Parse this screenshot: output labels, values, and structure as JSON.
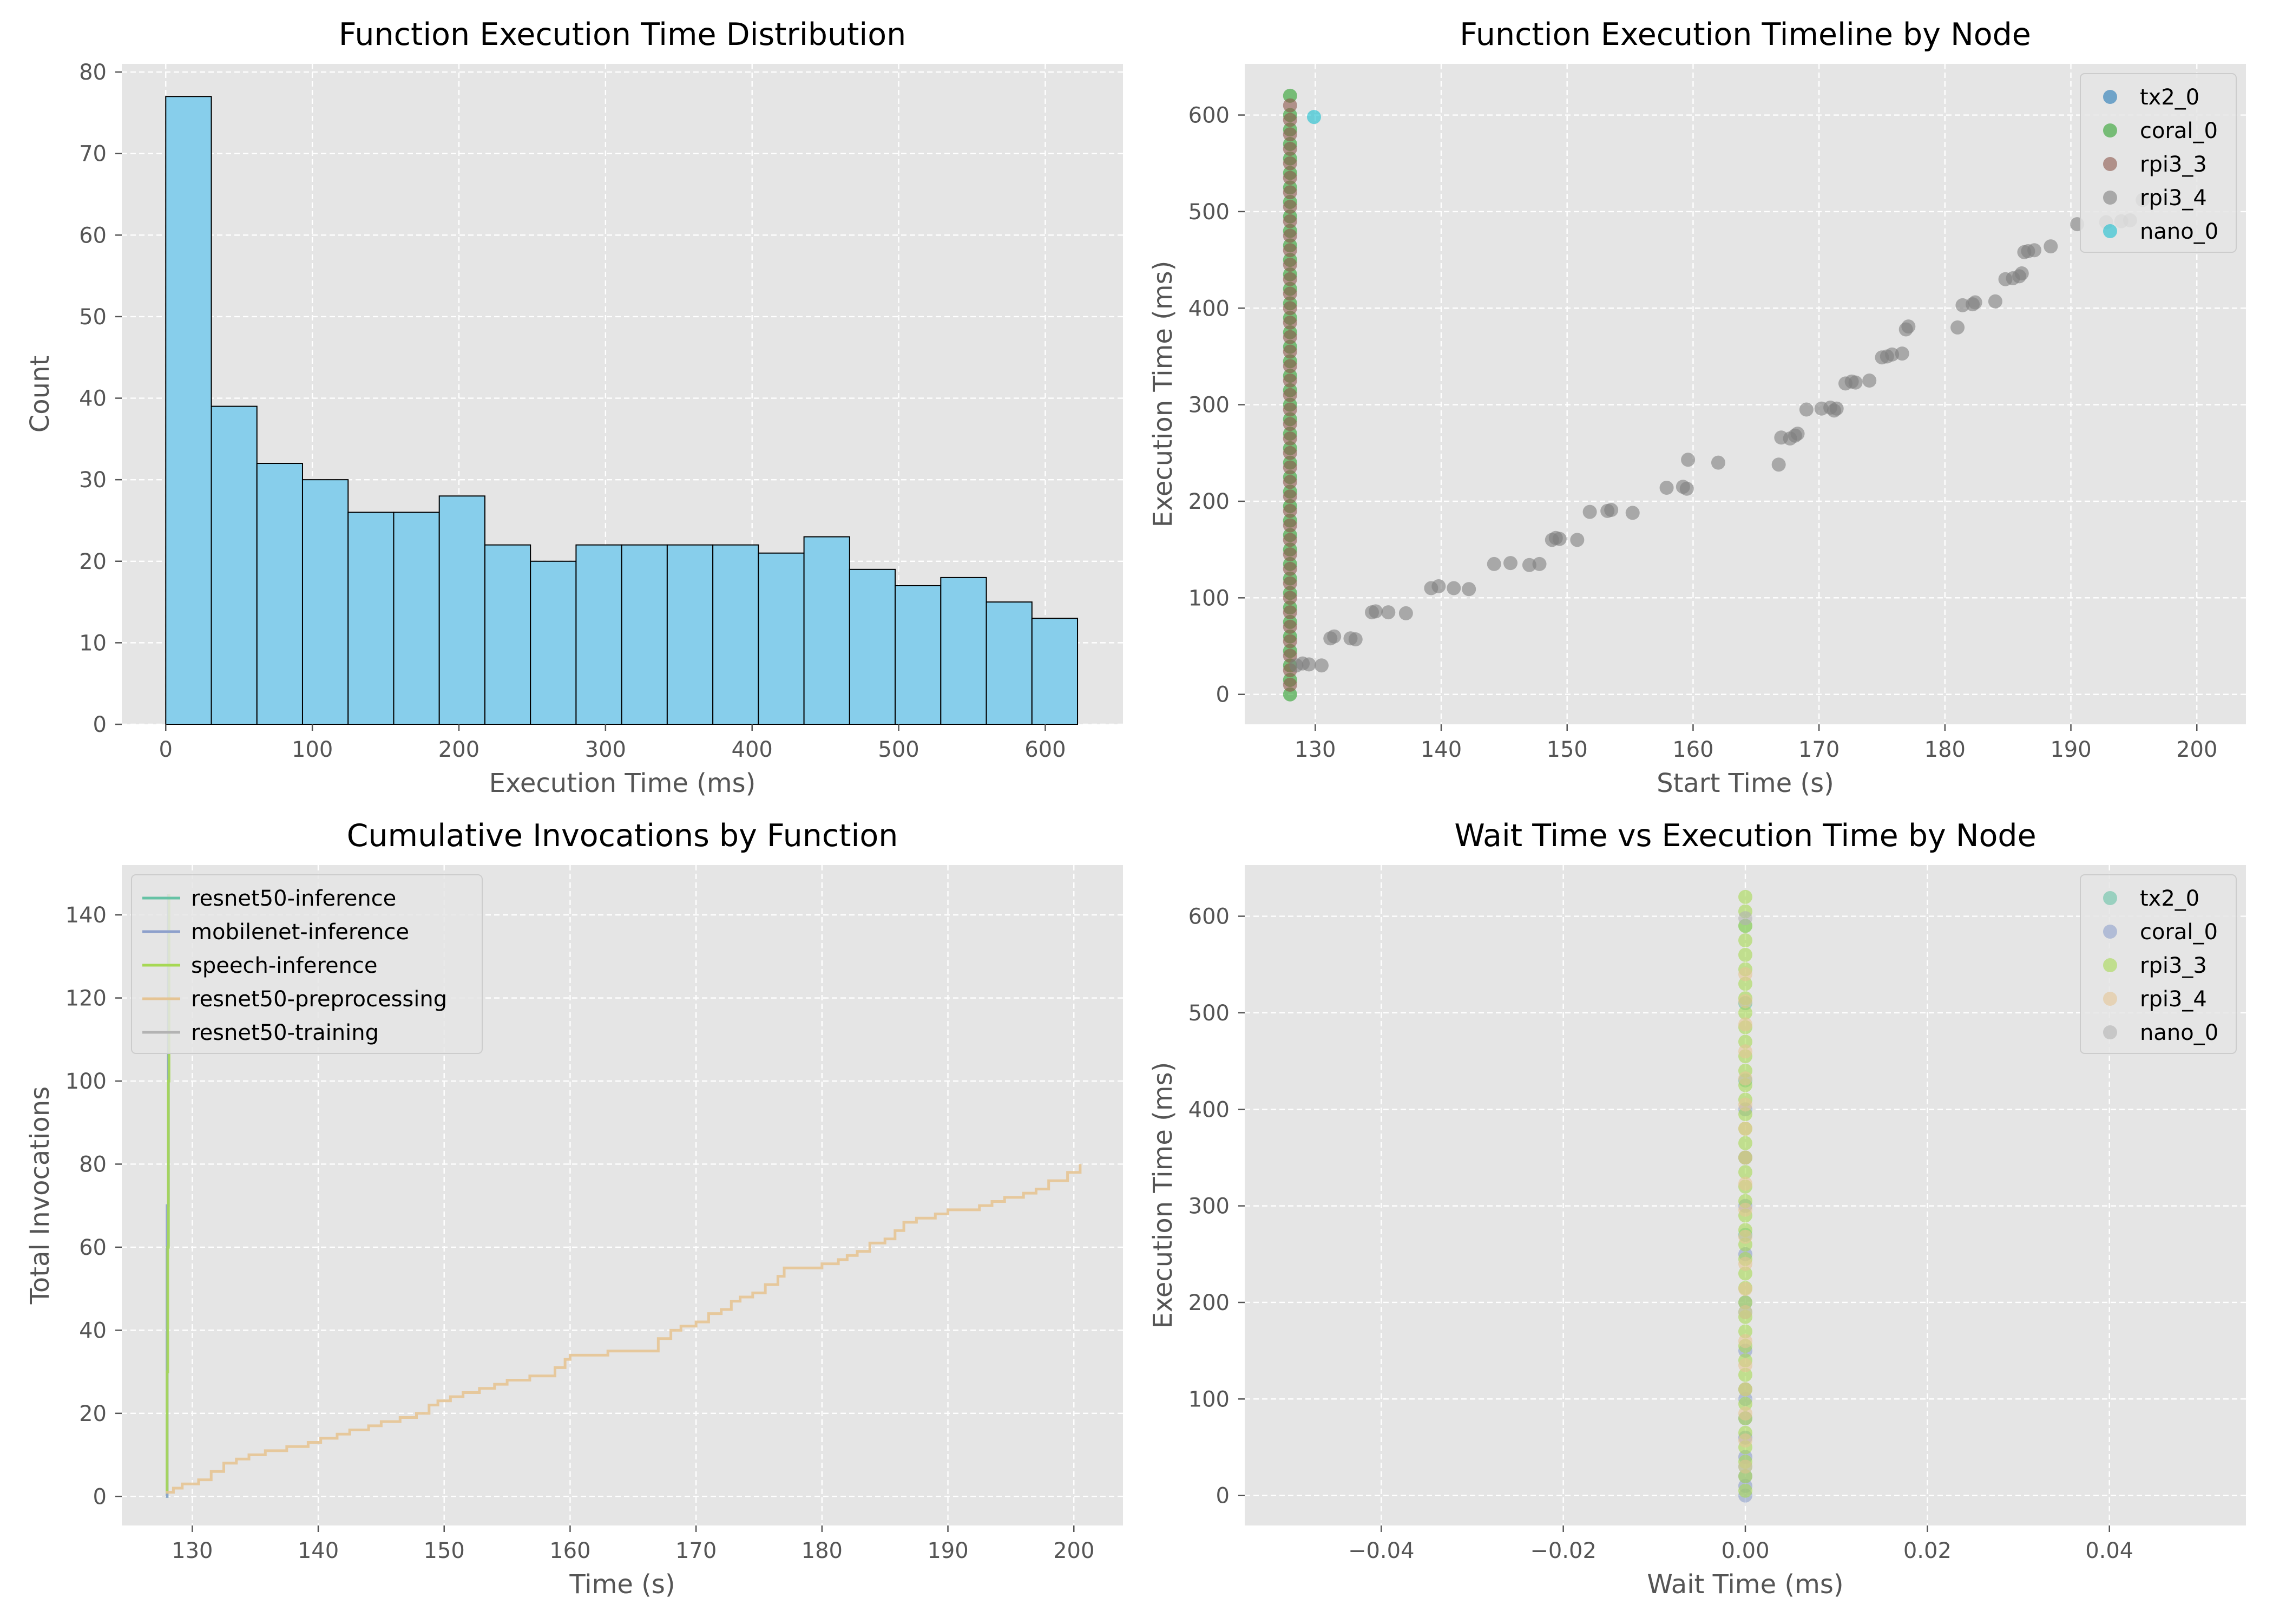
{
  "chart_data": [
    {
      "id": "hist",
      "type": "bar",
      "title": "Function Execution Time Distribution",
      "xlabel": "Execution Time (ms)",
      "ylabel": "Count",
      "xlim": [
        -30,
        653
      ],
      "ylim": [
        0,
        81
      ],
      "xticks": [
        0,
        100,
        200,
        300,
        400,
        500,
        600
      ],
      "yticks": [
        0,
        10,
        20,
        30,
        40,
        50,
        60,
        70,
        80
      ],
      "bin_edges": [
        0,
        31.1,
        62.2,
        93.3,
        124.4,
        155.5,
        186.6,
        217.7,
        248.8,
        279.9,
        311,
        342.1,
        373.2,
        404.3,
        435.4,
        466.5,
        497.6,
        528.7,
        559.8,
        590.9,
        622
      ],
      "values": [
        77,
        39,
        32,
        30,
        26,
        26,
        28,
        22,
        20,
        22,
        22,
        22,
        22,
        21,
        23,
        19,
        17,
        18,
        15,
        13
      ],
      "bar_color": "#87ceeb",
      "grid": true
    },
    {
      "id": "timeline",
      "type": "scatter",
      "title": "Function Execution Timeline by Node",
      "xlabel": "Start Time (s)",
      "ylabel": "Execution Time (ms)",
      "xlim": [
        124.4,
        203.9
      ],
      "ylim": [
        -31,
        653
      ],
      "xticks": [
        130,
        140,
        150,
        160,
        170,
        180,
        190,
        200
      ],
      "yticks": [
        0,
        100,
        200,
        300,
        400,
        500,
        600
      ],
      "legend_position": "top-right",
      "grid": true,
      "series": [
        {
          "name": "tx2_0",
          "color": "#1f77b4",
          "x": [],
          "y": []
        },
        {
          "name": "coral_0",
          "color": "#2ca02c",
          "x": [
            128,
            128,
            128,
            128,
            128,
            128,
            128,
            128,
            128,
            128,
            128,
            128,
            128,
            128,
            128,
            128,
            128,
            128,
            128,
            128,
            128,
            128,
            128,
            128,
            128,
            128,
            128,
            128,
            128,
            128,
            128,
            128,
            128,
            128,
            128,
            128,
            128,
            128,
            128,
            128,
            128,
            128
          ],
          "y": [
            0,
            15,
            30,
            45,
            60,
            75,
            90,
            105,
            120,
            135,
            150,
            165,
            180,
            195,
            210,
            225,
            240,
            255,
            270,
            285,
            300,
            315,
            330,
            345,
            360,
            375,
            390,
            405,
            420,
            435,
            450,
            465,
            480,
            495,
            510,
            525,
            540,
            555,
            570,
            585,
            600,
            620
          ]
        },
        {
          "name": "rpi3_3",
          "color": "#8c564b",
          "x": [
            128,
            128,
            128,
            128,
            128,
            128,
            128,
            128,
            128,
            128,
            128,
            128,
            128,
            128,
            128,
            128,
            128,
            128,
            128,
            128,
            128,
            128,
            128,
            128,
            128,
            128,
            128,
            128,
            128,
            128,
            128,
            128,
            128,
            128,
            128,
            128,
            128,
            128,
            128,
            128,
            128
          ],
          "y": [
            10,
            25,
            40,
            55,
            70,
            85,
            100,
            115,
            130,
            145,
            160,
            175,
            190,
            205,
            220,
            235,
            250,
            265,
            280,
            295,
            310,
            325,
            340,
            355,
            370,
            385,
            400,
            415,
            430,
            445,
            460,
            475,
            490,
            505,
            520,
            535,
            550,
            565,
            580,
            595,
            610
          ]
        },
        {
          "name": "rpi3_4",
          "color": "#7f7f7f",
          "x": [
            128.5,
            129.0,
            129.5,
            130.5,
            131.2,
            131.5,
            132.8,
            133.2,
            134.5,
            134.8,
            135.8,
            137.2,
            139.2,
            139.8,
            141.0,
            142.2,
            144.2,
            145.5,
            147.0,
            147.8,
            148.8,
            149.1,
            149.4,
            150.8,
            151.8,
            153.2,
            153.5,
            155.2,
            157.9,
            159.2,
            159.5,
            159.6,
            162.0,
            166.8,
            167.0,
            167.7,
            168.1,
            168.3,
            169.0,
            170.2,
            170.9,
            171.2,
            171.4,
            172.1,
            172.6,
            172.9,
            174.0,
            175.0,
            175.4,
            175.8,
            176.6,
            176.9,
            177.1,
            181.0,
            181.4,
            182.2,
            182.4,
            184.0,
            184.8,
            185.4,
            185.9,
            186.1,
            186.3,
            186.6,
            187.1,
            188.4,
            190.5,
            192.8,
            194.0,
            194.7,
            195.7
          ],
          "y": [
            30,
            32,
            31,
            30,
            58,
            60,
            58,
            57,
            85,
            86,
            85,
            84,
            110,
            112,
            110,
            109,
            135,
            136,
            134,
            135,
            160,
            162,
            161,
            160,
            189,
            190,
            191,
            188,
            214,
            215,
            213,
            243,
            240,
            238,
            266,
            265,
            268,
            270,
            295,
            296,
            297,
            294,
            296,
            322,
            324,
            323,
            325,
            349,
            350,
            352,
            353,
            378,
            381,
            380,
            403,
            404,
            406,
            407,
            430,
            431,
            433,
            436,
            458,
            459,
            460,
            464,
            487,
            489,
            490,
            491,
            512
          ]
        },
        {
          "name": "nano_0",
          "color": "#17becf",
          "x": [
            129.9
          ],
          "y": [
            598
          ]
        }
      ]
    },
    {
      "id": "cumulative",
      "type": "line",
      "title": "Cumulative Invocations by Function",
      "xlabel": "Time (s)",
      "ylabel": "Total Invocations",
      "xlim": [
        124.4,
        203.9
      ],
      "ylim": [
        -7,
        152
      ],
      "xticks": [
        130,
        140,
        150,
        160,
        170,
        180,
        190,
        200
      ],
      "yticks": [
        0,
        20,
        40,
        60,
        80,
        100,
        120,
        140
      ],
      "legend_position": "top-left",
      "grid": true,
      "series": [
        {
          "name": "resnet50-inference",
          "color": "#66c2a5",
          "x": [
            127.9,
            128.0,
            128.1
          ],
          "y": [
            0,
            60,
            145
          ]
        },
        {
          "name": "mobilenet-inference",
          "color": "#8da0cb",
          "x": [
            127.9,
            128.0,
            128.1
          ],
          "y": [
            0,
            70,
            145
          ]
        },
        {
          "name": "speech-inference",
          "color": "#a6d854",
          "x": [
            127.9,
            128.0,
            128.05,
            128.1,
            128.15
          ],
          "y": [
            1,
            30,
            60,
            100,
            145
          ]
        },
        {
          "name": "resnet50-preprocessing",
          "color": "#e5c494",
          "x": [
            127.9,
            128.5,
            129.2,
            130.5,
            131.5,
            132.5,
            133.5,
            134.5,
            135.8,
            137.5,
            139.2,
            140.2,
            141.5,
            142.5,
            144.0,
            145.0,
            146.5,
            147.8,
            148.8,
            149.5,
            150.5,
            151.5,
            152.8,
            154.0,
            155.0,
            156.8,
            158.8,
            159.6,
            160.0,
            163.0,
            167.0,
            168.0,
            168.8,
            170.0,
            171.0,
            172.0,
            172.8,
            173.5,
            174.5,
            175.5,
            176.5,
            177.0,
            180.0,
            181.3,
            182.0,
            182.8,
            183.8,
            185.0,
            185.8,
            186.5,
            187.5,
            189.0,
            190.0,
            192.5,
            193.5,
            194.5,
            196.0,
            197.0,
            198.0,
            199.5,
            200.5
          ],
          "y": [
            1,
            2,
            3,
            4,
            6,
            8,
            9,
            10,
            11,
            12,
            13,
            14,
            15,
            16,
            17,
            18,
            19,
            20,
            22,
            23,
            24,
            25,
            26,
            27,
            28,
            29,
            31,
            33,
            34,
            35,
            38,
            40,
            41,
            42,
            44,
            45,
            47,
            48,
            49,
            51,
            53,
            55,
            56,
            57,
            58,
            59,
            61,
            62,
            64,
            66,
            67,
            68,
            69,
            70,
            71,
            72,
            73,
            74,
            76,
            78,
            80
          ]
        },
        {
          "name": "resnet50-training",
          "color": "#b3b3b3",
          "x": [],
          "y": []
        }
      ]
    },
    {
      "id": "waitvsexec",
      "type": "scatter",
      "title": "Wait Time vs Execution Time by Node",
      "xlabel": "Wait Time (ms)",
      "ylabel": "Execution Time (ms)",
      "xlim": [
        -0.055,
        0.055
      ],
      "ylim": [
        -31,
        653
      ],
      "xticks": [
        -0.04,
        -0.02,
        0.0,
        0.02,
        0.04
      ],
      "xtick_labels": [
        "−0.04",
        "−0.02",
        "0.00",
        "0.02",
        "0.04"
      ],
      "yticks": [
        0,
        100,
        200,
        300,
        400,
        500,
        600
      ],
      "legend_position": "top-right",
      "grid": true,
      "series": [
        {
          "name": "tx2_0",
          "color": "#66c2a5",
          "x": [
            0,
            0,
            0,
            0,
            0,
            0,
            0,
            0
          ],
          "y": [
            30,
            110,
            190,
            270,
            350,
            430,
            510,
            590
          ]
        },
        {
          "name": "coral_0",
          "color": "#8da0cb",
          "x": [
            0,
            0,
            0,
            0,
            0,
            0,
            0,
            0,
            0,
            0,
            0,
            0,
            0
          ],
          "y": [
            0,
            10,
            20,
            40,
            60,
            80,
            100,
            150,
            200,
            250,
            300,
            350,
            400
          ]
        },
        {
          "name": "rpi3_3",
          "color": "#a6d854",
          "x": [
            0,
            0,
            0,
            0,
            0,
            0,
            0,
            0,
            0,
            0,
            0,
            0,
            0,
            0,
            0,
            0,
            0,
            0,
            0,
            0,
            0,
            0,
            0,
            0,
            0,
            0,
            0,
            0,
            0,
            0,
            0,
            0,
            0,
            0,
            0,
            0,
            0,
            0,
            0,
            0,
            0,
            0
          ],
          "y": [
            5,
            20,
            35,
            50,
            65,
            80,
            95,
            110,
            125,
            140,
            155,
            170,
            185,
            200,
            215,
            230,
            245,
            260,
            275,
            290,
            305,
            320,
            335,
            350,
            365,
            380,
            395,
            410,
            425,
            440,
            455,
            470,
            485,
            500,
            515,
            530,
            545,
            560,
            575,
            590,
            605,
            620
          ]
        },
        {
          "name": "rpi3_4",
          "color": "#e5c494",
          "x": [
            0,
            0,
            0,
            0,
            0,
            0,
            0,
            0,
            0,
            0,
            0,
            0,
            0,
            0,
            0,
            0,
            0,
            0,
            0,
            0
          ],
          "y": [
            30,
            57,
            85,
            110,
            135,
            160,
            190,
            214,
            240,
            268,
            296,
            323,
            350,
            380,
            405,
            432,
            460,
            488,
            512,
            540
          ]
        },
        {
          "name": "nano_0",
          "color": "#b3b3b3",
          "x": [
            0
          ],
          "y": [
            598
          ]
        }
      ]
    }
  ]
}
